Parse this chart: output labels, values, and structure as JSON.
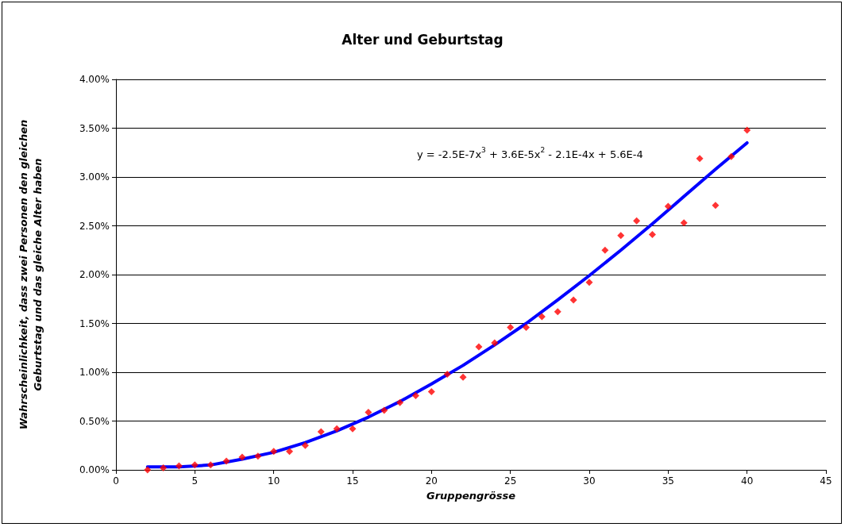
{
  "chart_data": {
    "type": "scatter",
    "title": "Alter und Geburtstag",
    "xlabel": "Gruppengrösse",
    "ylabel": "Wahrscheinlichkeit, dass zwei Personen den gleichen\nGeburtstag und das gleiche Alter haben",
    "annotations": [
      "y = -2.5E-7x$^{3}$ + 3.6E-5x$^{2}$ - 2.1E-4x + 5.6E-4"
    ],
    "series": [
      {
        "type": "scatter",
        "color": "#ff0000",
        "marker": "diamond",
        "x": [
          2,
          3,
          4,
          5,
          6,
          7,
          8,
          9,
          10,
          11,
          12,
          13,
          14,
          15,
          16,
          17,
          18,
          19,
          20,
          21,
          22,
          23,
          24,
          25,
          26,
          27,
          28,
          29,
          30,
          31,
          32,
          33,
          34,
          35,
          36,
          37,
          38,
          39,
          40
        ],
        "values": [
          0.0,
          0.02,
          0.04,
          0.05,
          0.05,
          0.09,
          0.13,
          0.14,
          0.19,
          0.19,
          0.25,
          0.39,
          0.42,
          0.42,
          0.59,
          0.61,
          0.69,
          0.76,
          0.8,
          0.98,
          0.95,
          1.26,
          1.3,
          1.46,
          1.46,
          1.57,
          1.62,
          1.74,
          1.92,
          2.25,
          2.4,
          2.55,
          2.41,
          2.7,
          2.53,
          3.19,
          2.71,
          3.21,
          3.48
        ]
      },
      {
        "type": "line",
        "color": "#0000ff",
        "marker": "none",
        "x": [
          2,
          4,
          6,
          8,
          10,
          12,
          14,
          16,
          18,
          20,
          22,
          24,
          26,
          28,
          30,
          32,
          34,
          36,
          38,
          40
        ],
        "values": [
          0.03,
          0.03,
          0.05,
          0.11,
          0.18,
          0.28,
          0.4,
          0.54,
          0.7,
          0.88,
          1.07,
          1.28,
          1.5,
          1.74,
          1.99,
          2.25,
          2.52,
          2.8,
          3.08,
          3.35
        ]
      }
    ],
    "xlim": [
      0,
      45
    ],
    "xticks": [
      0,
      5,
      10,
      15,
      20,
      25,
      30,
      35,
      40,
      45
    ],
    "ylim": [
      0,
      4
    ],
    "yticks": [
      {
        "value": 0,
        "label": "0.00%"
      },
      {
        "value": 0.5,
        "label": "0.50%"
      },
      {
        "value": 1,
        "label": "1.00%"
      },
      {
        "value": 1.5,
        "label": "1.50%"
      },
      {
        "value": 2,
        "label": "2.00%"
      },
      {
        "value": 2.5,
        "label": "2.50%"
      },
      {
        "value": 3,
        "label": "3.00%"
      },
      {
        "value": 3.5,
        "label": "3.50%"
      },
      {
        "value": 4,
        "label": "4.00%"
      }
    ],
    "grid": "y"
  }
}
